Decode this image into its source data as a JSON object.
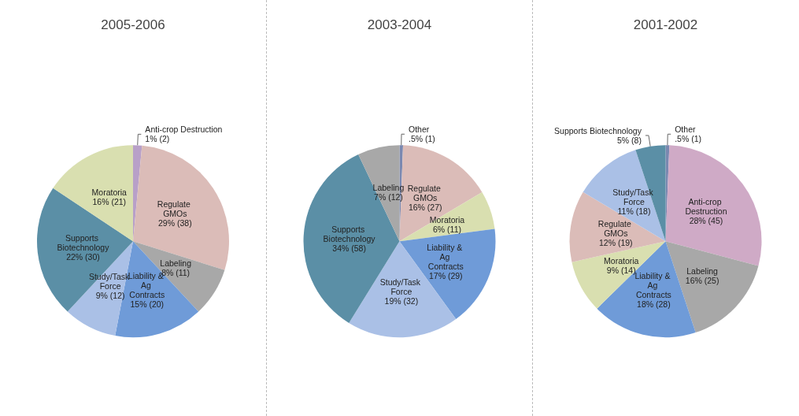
{
  "chart_data": [
    {
      "type": "pie",
      "title": "2005-2006",
      "categories": [
        "Anti-crop Destruction",
        "Regulate GMOs",
        "Labeling",
        "Liability & Ag Contracts",
        "Study/Task Force",
        "Supports Biotechnology",
        "Moratoria"
      ],
      "values": [
        2,
        38,
        11,
        20,
        12,
        30,
        21
      ],
      "value_labels": [
        "1% (2)",
        "29% (38)",
        "8% (11)",
        "15% (20)",
        "9% (12)",
        "22% (30)",
        "16% (21)"
      ],
      "colors": [
        "#b8a0c8",
        "#dbbcb8",
        "#a8a8a8",
        "#6f9bd8",
        "#aac0e6",
        "#5b8fa6",
        "#d9dfb0"
      ],
      "legend": false
    },
    {
      "type": "pie",
      "title": "2003-2004",
      "categories": [
        "Other",
        "Regulate GMOs",
        "Moratoria",
        "Liability & Ag Contracts",
        "Study/Task Force",
        "Supports Biotechnology",
        "Labeling"
      ],
      "values": [
        1,
        27,
        11,
        29,
        32,
        58,
        12
      ],
      "value_labels": [
        ".5% (1)",
        "16% (27)",
        "6% (11)",
        "17% (29)",
        "19% (32)",
        "34% (58)",
        "7% (12)"
      ],
      "colors": [
        "#7a88b0",
        "#dbbcb8",
        "#d9dfb0",
        "#6f9bd8",
        "#aac0e6",
        "#5b8fa6",
        "#a8a8a8"
      ],
      "legend": false
    },
    {
      "type": "pie",
      "title": "2001-2002",
      "categories": [
        "Other",
        "Anti-crop Destruction",
        "Labeling",
        "Liability & Ag Contracts",
        "Moratoria",
        "Regulate GMOs",
        "Study/Task Force",
        "Supports Biotechnology"
      ],
      "values": [
        1,
        45,
        25,
        28,
        14,
        19,
        18,
        8
      ],
      "value_labels": [
        ".5% (1)",
        "28% (45)",
        "16% (25)",
        "18% (28)",
        "9% (14)",
        "12% (19)",
        "11% (18)",
        "5% (8)"
      ],
      "colors": [
        "#7a88b0",
        "#cfaac6",
        "#a8a8a8",
        "#6f9bd8",
        "#d9dfb0",
        "#dbbcb8",
        "#aac0e6",
        "#5b8fa6"
      ],
      "legend": false
    }
  ]
}
